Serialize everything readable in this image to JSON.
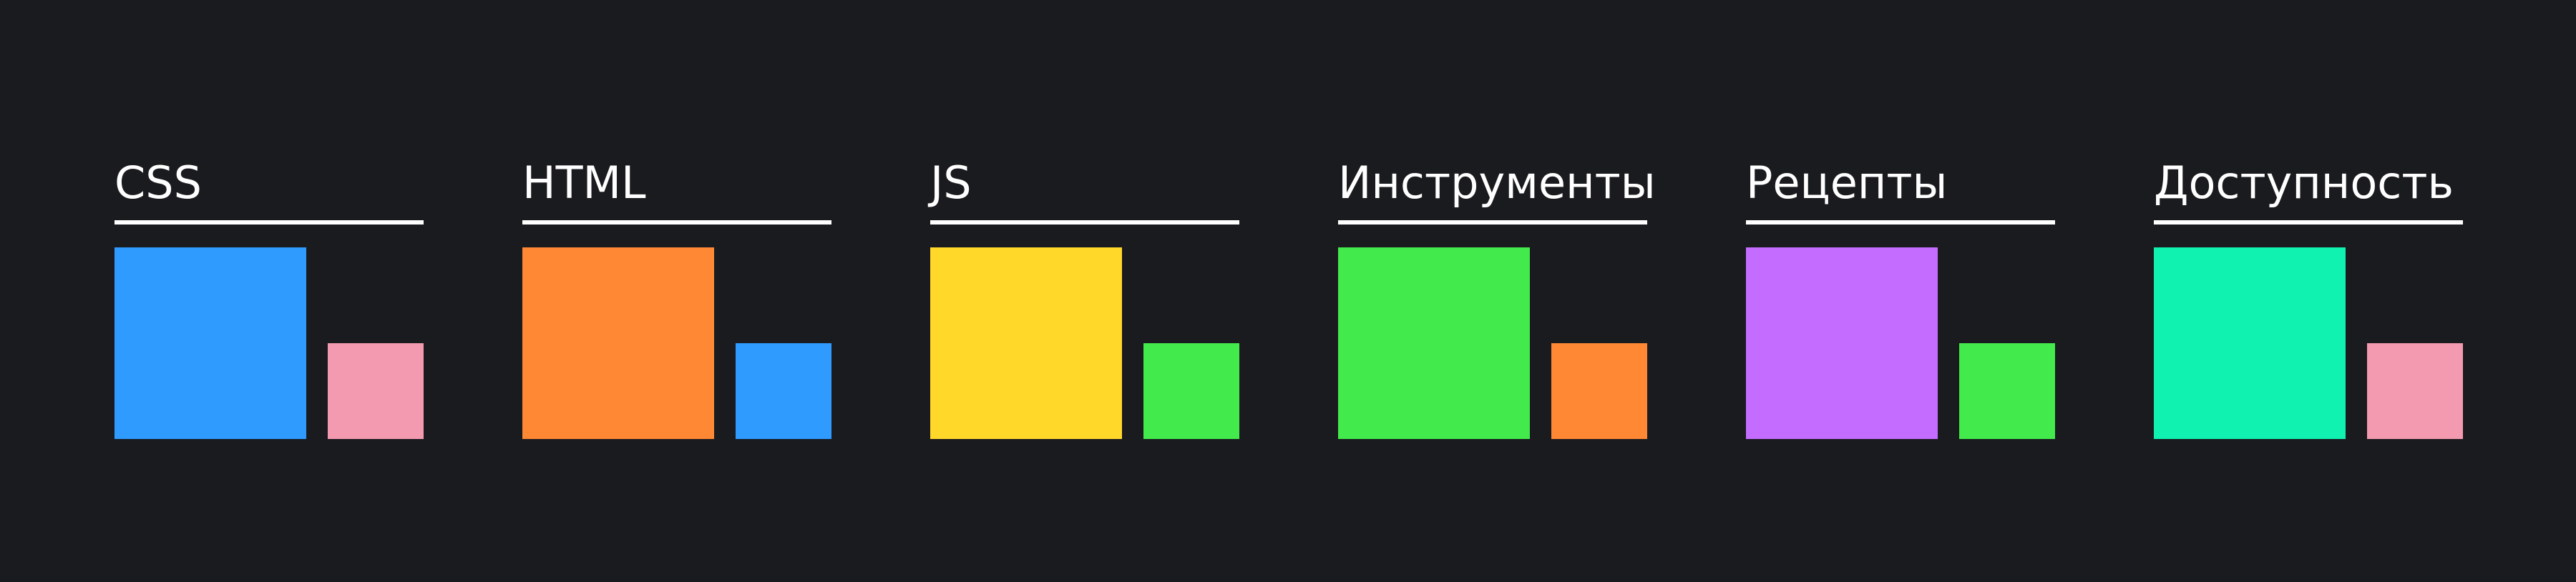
{
  "categories": [
    {
      "title": "CSS",
      "primary_color": "#2f9bff",
      "secondary_color": "#f49ab0"
    },
    {
      "title": "HTML",
      "primary_color": "#ff8834",
      "secondary_color": "#2f9bff"
    },
    {
      "title": "JS",
      "primary_color": "#ffd82a",
      "secondary_color": "#42ea4b"
    },
    {
      "title": "Инструменты",
      "primary_color": "#42ea4b",
      "secondary_color": "#ff8834"
    },
    {
      "title": "Рецепты",
      "primary_color": "#c46cff",
      "secondary_color": "#42ea4b"
    },
    {
      "title": "Доступность",
      "primary_color": "#10f2b0",
      "secondary_color": "#f49ab0"
    }
  ]
}
